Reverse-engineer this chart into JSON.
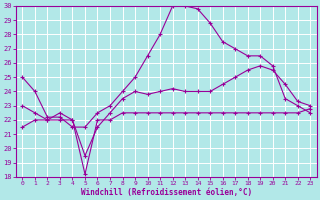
{
  "xlabel": "Windchill (Refroidissement éolien,°C)",
  "xlim": [
    -0.5,
    23.5
  ],
  "ylim": [
    18,
    30
  ],
  "xticks": [
    0,
    1,
    2,
    3,
    4,
    5,
    6,
    7,
    8,
    9,
    10,
    11,
    12,
    13,
    14,
    15,
    16,
    17,
    18,
    19,
    20,
    21,
    22,
    23
  ],
  "yticks": [
    18,
    19,
    20,
    21,
    22,
    23,
    24,
    25,
    26,
    27,
    28,
    29,
    30
  ],
  "bg_color": "#b2e8e8",
  "grid_color": "#ffffff",
  "line_color": "#990099",
  "line1_x": [
    0,
    1,
    2,
    3,
    4,
    5,
    6,
    7,
    8,
    9,
    10,
    11,
    12,
    13,
    14,
    15,
    16,
    17,
    18,
    19,
    20,
    21,
    22,
    23
  ],
  "line1_y": [
    25.0,
    24.0,
    22.2,
    22.2,
    21.5,
    21.5,
    22.5,
    23.0,
    24.0,
    25.0,
    26.5,
    28.0,
    30.0,
    30.0,
    29.8,
    28.8,
    27.5,
    27.0,
    26.5,
    26.5,
    25.8,
    23.5,
    23.0,
    22.5
  ],
  "line2_x": [
    0,
    1,
    2,
    3,
    4,
    5,
    6,
    7,
    8,
    9,
    10,
    11,
    12,
    13,
    14,
    15,
    16,
    17,
    18,
    19,
    20,
    21,
    22,
    23
  ],
  "line2_y": [
    23.0,
    22.5,
    22.0,
    22.5,
    22.0,
    19.5,
    21.5,
    22.5,
    23.5,
    24.0,
    23.8,
    24.0,
    24.2,
    24.0,
    24.0,
    24.0,
    24.5,
    25.0,
    25.5,
    25.8,
    25.5,
    24.5,
    23.3,
    23.0
  ],
  "line3_x": [
    0,
    1,
    2,
    3,
    4,
    5,
    6,
    7,
    8,
    9,
    10,
    11,
    12,
    13,
    14,
    15,
    16,
    17,
    18,
    19,
    20,
    21,
    22,
    23
  ],
  "line3_y": [
    21.5,
    22.0,
    22.0,
    22.0,
    22.0,
    18.2,
    22.0,
    22.0,
    22.5,
    22.5,
    22.5,
    22.5,
    22.5,
    22.5,
    22.5,
    22.5,
    22.5,
    22.5,
    22.5,
    22.5,
    22.5,
    22.5,
    22.5,
    22.8
  ]
}
